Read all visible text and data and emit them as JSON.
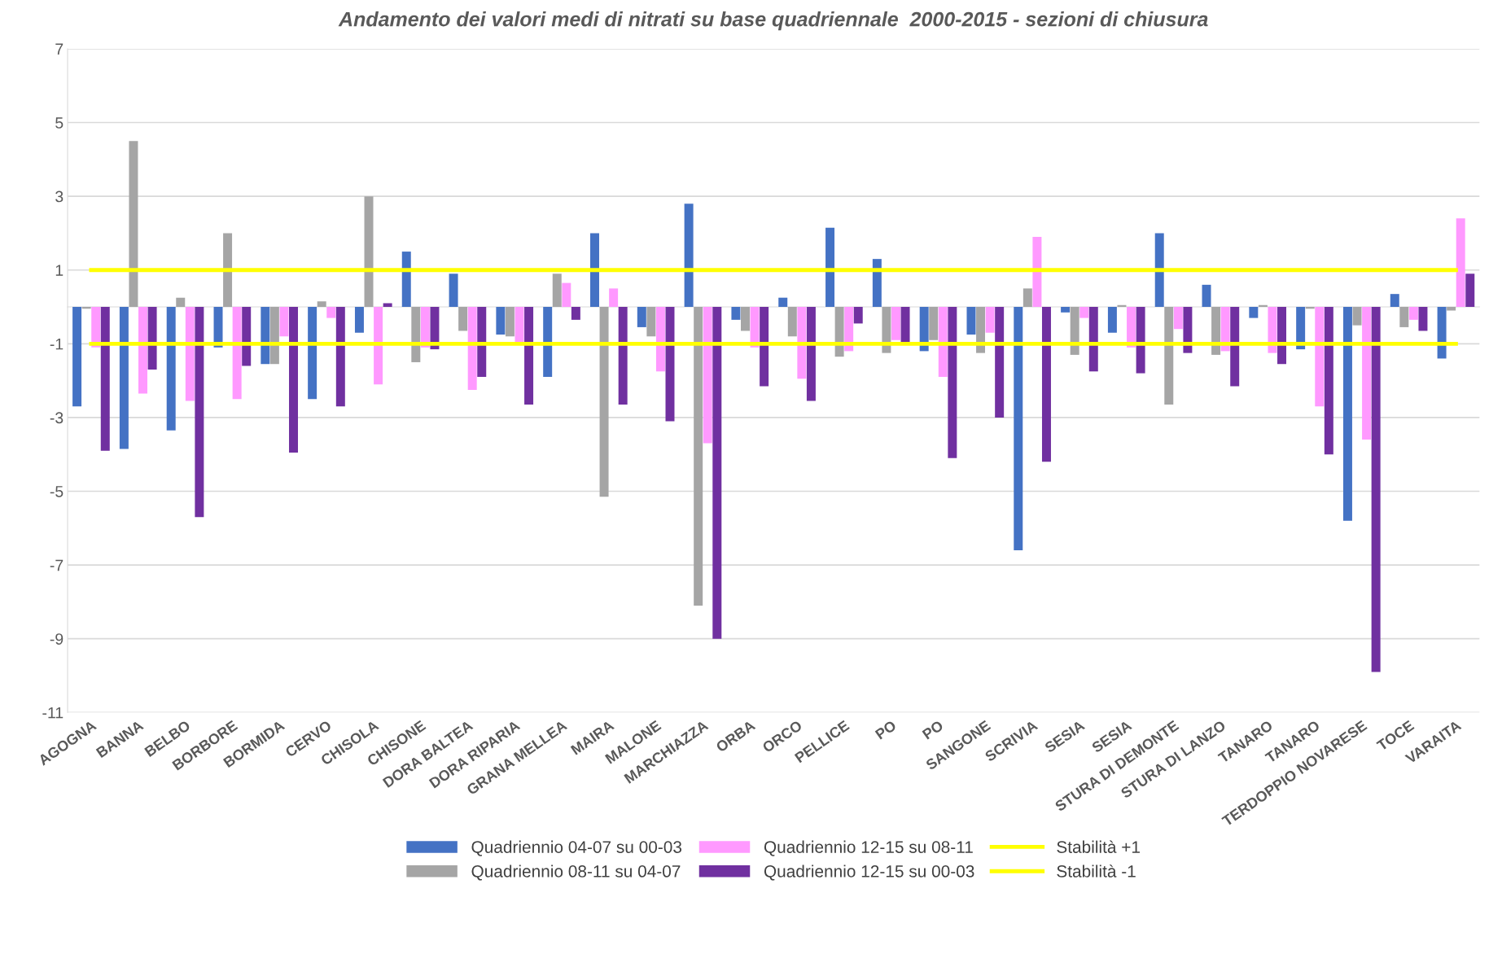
{
  "chart_data": {
    "type": "bar",
    "title": "Andamento dei valori medi di nitrati su base quadriennale  2000-2015 - sezioni di chiusura",
    "categories": [
      "AGOGNA",
      "BANNA",
      "BELBO",
      "BORBORE",
      "BORMIDA",
      "CERVO",
      "CHISOLA",
      "CHISONE",
      "DORA BALTEA",
      "DORA RIPARIA",
      "GRANA MELLEA",
      "MAIRA",
      "MALONE",
      "MARCHIAZZA",
      "ORBA",
      "ORCO",
      "PELLICE",
      "PO",
      "PO",
      "SANGONE",
      "SCRIVIA",
      "SESIA",
      "SESIA",
      "STURA DI DEMONTE",
      "STURA DI LANZO",
      "TANARO",
      "TANARO",
      "TERDOPPIO NOVARESE",
      "TOCE",
      "VARAITA"
    ],
    "series": [
      {
        "name": "Quadriennio 04-07 su 00-03",
        "color": "#4472c4",
        "values": [
          -2.7,
          -3.85,
          -3.35,
          -1.1,
          -1.55,
          -2.5,
          -0.7,
          1.5,
          0.9,
          -0.75,
          -1.9,
          2.0,
          -0.55,
          2.8,
          -0.35,
          0.25,
          2.15,
          1.3,
          -1.2,
          -0.75,
          -6.6,
          -0.15,
          -0.7,
          2.0,
          0.6,
          -0.3,
          -1.15,
          -5.8,
          0.35,
          -1.4
        ]
      },
      {
        "name": "Quadriennio 08-11 su 04-07",
        "color": "#a5a5a5",
        "values": [
          -0.05,
          4.5,
          0.25,
          2.0,
          -1.55,
          0.15,
          3.0,
          -1.5,
          -0.65,
          -0.8,
          0.9,
          -5.15,
          -0.8,
          -8.1,
          -0.65,
          -0.8,
          -1.35,
          -1.25,
          -0.9,
          -1.25,
          0.5,
          -1.3,
          0.05,
          -2.65,
          -1.3,
          0.05,
          -0.05,
          -0.5,
          -0.55,
          -0.1
        ]
      },
      {
        "name": "Quadriennio 12-15 su 08-11",
        "color": "#ff99ff",
        "values": [
          -1.1,
          -2.35,
          -2.55,
          -2.5,
          -0.8,
          -0.3,
          -2.1,
          -1.1,
          -2.25,
          -0.95,
          0.65,
          0.5,
          -1.75,
          -3.7,
          -1.1,
          -1.95,
          -1.2,
          -0.9,
          -1.9,
          -0.7,
          1.9,
          -0.3,
          -1.1,
          -0.6,
          -1.2,
          -1.25,
          -2.7,
          -3.6,
          -0.35,
          2.4
        ]
      },
      {
        "name": "Quadriennio 12-15 su 00-03",
        "color": "#7030a0",
        "values": [
          -3.9,
          -1.7,
          -5.7,
          -1.6,
          -3.95,
          -2.7,
          0.1,
          -1.15,
          -1.9,
          -2.65,
          -0.35,
          -2.65,
          -3.1,
          -9.0,
          -2.15,
          -2.55,
          -0.45,
          -0.95,
          -4.1,
          -3.0,
          -4.2,
          -1.75,
          -1.8,
          -1.25,
          -2.15,
          -1.55,
          -4.0,
          -9.9,
          -0.65,
          0.9
        ]
      },
      {
        "name": "Stabilità +1",
        "type": "line",
        "color": "#ffff00",
        "values": [
          1,
          1,
          1,
          1,
          1,
          1,
          1,
          1,
          1,
          1,
          1,
          1,
          1,
          1,
          1,
          1,
          1,
          1,
          1,
          1,
          1,
          1,
          1,
          1,
          1,
          1,
          1,
          1,
          1,
          1
        ]
      },
      {
        "name": "Stabilità -1",
        "type": "line",
        "color": "#ffff00",
        "values": [
          -1,
          -1,
          -1,
          -1,
          -1,
          -1,
          -1,
          -1,
          -1,
          -1,
          -1,
          -1,
          -1,
          -1,
          -1,
          -1,
          -1,
          -1,
          -1,
          -1,
          -1,
          -1,
          -1,
          -1,
          -1,
          -1,
          -1,
          -1,
          -1,
          -1
        ]
      }
    ],
    "ylim": [
      -11,
      7
    ],
    "yticks": [
      -11,
      -9,
      -7,
      -5,
      -3,
      -1,
      1,
      3,
      5,
      7
    ],
    "grid": "y",
    "legend": "bottom"
  }
}
